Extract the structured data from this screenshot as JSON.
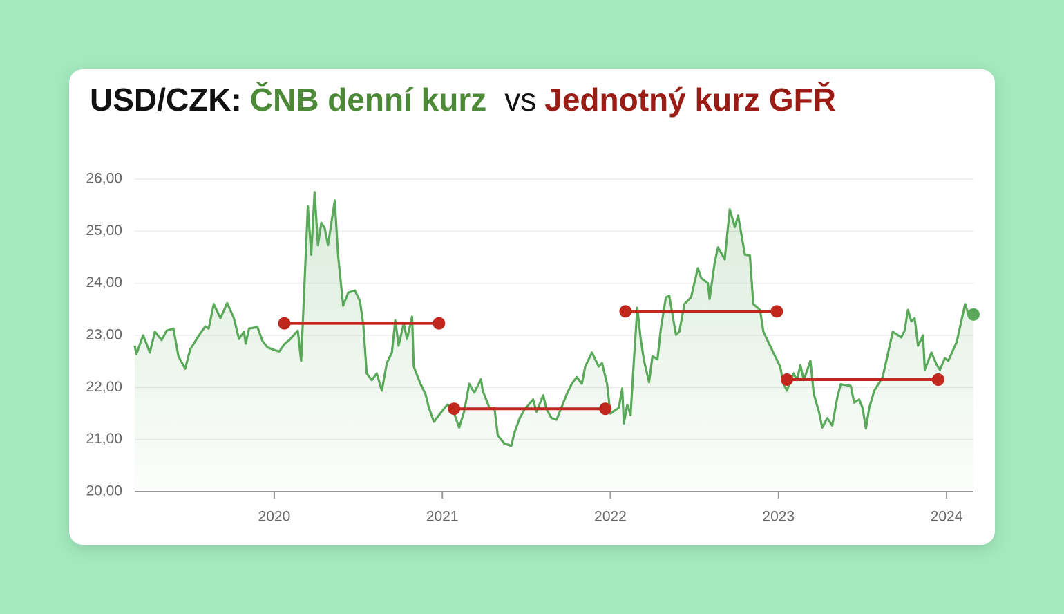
{
  "chart_data": {
    "type": "line",
    "title_parts": [
      {
        "text": "USD/CZK:",
        "color": "#111111"
      },
      {
        "text": "ČNB denní kurz",
        "color": "#4c8a38"
      },
      {
        "text": "vs",
        "color": "#111111"
      },
      {
        "text": "Jednotný kurz GFŘ",
        "color": "#9a1c14"
      }
    ],
    "xlim": [
      2019.17,
      2024.16
    ],
    "xticks": [
      2020,
      2021,
      2022,
      2023,
      2024
    ],
    "ylim": [
      20,
      26
    ],
    "yticks": [
      {
        "value": 20,
        "label": "20,00"
      },
      {
        "value": 21,
        "label": "21,00"
      },
      {
        "value": 22,
        "label": "22,00"
      },
      {
        "value": 23,
        "label": "23,00"
      },
      {
        "value": 24,
        "label": "24,00"
      },
      {
        "value": 25,
        "label": "25,00"
      },
      {
        "value": 26,
        "label": "26,00"
      }
    ],
    "grid": true,
    "series": [
      {
        "color": "#5aa95a",
        "x": [
          2019.17,
          2019.18,
          2019.22,
          2019.26,
          2019.29,
          2019.33,
          2019.36,
          2019.4,
          2019.43,
          2019.47,
          2019.5,
          2019.56,
          2019.59,
          2019.61,
          2019.64,
          2019.68,
          2019.72,
          2019.76,
          2019.79,
          2019.82,
          2019.83,
          2019.85,
          2019.9,
          2019.93,
          2019.96,
          2020.0,
          2020.03,
          2020.06,
          2020.09,
          2020.14,
          2020.16,
          2020.2,
          2020.22,
          2020.24,
          2020.26,
          2020.28,
          2020.3,
          2020.32,
          2020.36,
          2020.38,
          2020.41,
          2020.44,
          2020.48,
          2020.51,
          2020.53,
          2020.55,
          2020.58,
          2020.61,
          2020.64,
          2020.67,
          2020.7,
          2020.72,
          2020.74,
          2020.77,
          2020.79,
          2020.82,
          2020.83,
          2020.87,
          2020.9,
          2020.92,
          2020.95,
          2020.98,
          2021.03,
          2021.06,
          2021.08,
          2021.1,
          2021.13,
          2021.16,
          2021.19,
          2021.23,
          2021.24,
          2021.28,
          2021.31,
          2021.33,
          2021.37,
          2021.41,
          2021.43,
          2021.46,
          2021.49,
          2021.54,
          2021.56,
          2021.6,
          2021.62,
          2021.65,
          2021.68,
          2021.74,
          2021.77,
          2021.8,
          2021.83,
          2021.85,
          2021.89,
          2021.93,
          2021.95,
          2021.98,
          2022.0,
          2022.05,
          2022.07,
          2022.08,
          2022.1,
          2022.12,
          2022.14,
          2022.16,
          2022.18,
          2022.2,
          2022.23,
          2022.25,
          2022.28,
          2022.3,
          2022.33,
          2022.35,
          2022.39,
          2022.41,
          2022.44,
          2022.48,
          2022.52,
          2022.54,
          2022.58,
          2022.59,
          2022.62,
          2022.64,
          2022.68,
          2022.71,
          2022.74,
          2022.76,
          2022.8,
          2022.83,
          2022.85,
          2022.89,
          2022.91,
          2022.96,
          2023.01,
          2023.03,
          2023.05,
          2023.09,
          2023.11,
          2023.13,
          2023.15,
          2023.19,
          2023.21,
          2023.24,
          2023.26,
          2023.29,
          2023.32,
          2023.35,
          2023.37,
          2023.43,
          2023.45,
          2023.48,
          2023.5,
          2023.52,
          2023.54,
          2023.57,
          2023.62,
          2023.65,
          2023.68,
          2023.73,
          2023.75,
          2023.77,
          2023.79,
          2023.81,
          2023.83,
          2023.86,
          2023.87,
          2023.91,
          2023.94,
          2023.96,
          2023.99,
          2024.01,
          2024.04,
          2024.06,
          2024.09,
          2024.11,
          2024.13,
          2024.16
        ],
        "values": [
          22.8,
          22.64,
          23.0,
          22.67,
          23.07,
          22.91,
          23.09,
          23.13,
          22.6,
          22.36,
          22.73,
          23.04,
          23.17,
          23.13,
          23.6,
          23.33,
          23.62,
          23.33,
          22.93,
          23.07,
          22.84,
          23.13,
          23.16,
          22.89,
          22.77,
          22.72,
          22.69,
          22.83,
          22.91,
          23.09,
          22.51,
          25.48,
          24.55,
          25.75,
          24.73,
          25.16,
          25.06,
          24.73,
          25.59,
          24.53,
          23.57,
          23.82,
          23.86,
          23.66,
          23.2,
          22.27,
          22.14,
          22.27,
          21.94,
          22.47,
          22.67,
          23.29,
          22.8,
          23.23,
          22.93,
          23.36,
          22.4,
          22.07,
          21.87,
          21.61,
          21.34,
          21.47,
          21.67,
          21.61,
          21.41,
          21.23,
          21.54,
          22.07,
          21.9,
          22.16,
          21.94,
          21.61,
          21.61,
          21.08,
          20.92,
          20.88,
          21.14,
          21.41,
          21.58,
          21.77,
          21.53,
          21.85,
          21.58,
          21.41,
          21.38,
          21.87,
          22.07,
          22.2,
          22.07,
          22.4,
          22.67,
          22.4,
          22.47,
          22.07,
          21.5,
          21.61,
          21.98,
          21.31,
          21.67,
          21.47,
          22.54,
          23.53,
          22.93,
          22.51,
          22.1,
          22.6,
          22.54,
          23.13,
          23.73,
          23.76,
          23.01,
          23.07,
          23.6,
          23.73,
          24.29,
          24.1,
          24.0,
          23.7,
          24.39,
          24.69,
          24.46,
          25.42,
          25.08,
          25.3,
          24.55,
          24.53,
          23.6,
          23.49,
          23.07,
          22.73,
          22.4,
          22.07,
          21.94,
          22.27,
          22.14,
          22.43,
          22.14,
          22.51,
          21.87,
          21.54,
          21.23,
          21.41,
          21.27,
          21.81,
          22.06,
          22.03,
          21.71,
          21.77,
          21.61,
          21.21,
          21.61,
          21.94,
          22.2,
          22.64,
          23.07,
          22.96,
          23.09,
          23.49,
          23.27,
          23.33,
          22.8,
          23.0,
          22.34,
          22.67,
          22.44,
          22.34,
          22.56,
          22.51,
          22.73,
          22.87,
          23.31,
          23.6,
          23.4,
          23.4
        ]
      },
      {
        "color": "#c0271d",
        "segments": [
          {
            "x": [
              2020.06,
              2020.98
            ],
            "values": [
              23.23,
              23.23
            ]
          },
          {
            "x": [
              2021.07,
              2021.97
            ],
            "values": [
              21.59,
              21.59
            ]
          },
          {
            "x": [
              2022.09,
              2022.99
            ],
            "values": [
              23.46,
              23.46
            ]
          },
          {
            "x": [
              2023.05,
              2023.95
            ],
            "values": [
              22.15,
              22.15
            ]
          }
        ]
      }
    ]
  }
}
